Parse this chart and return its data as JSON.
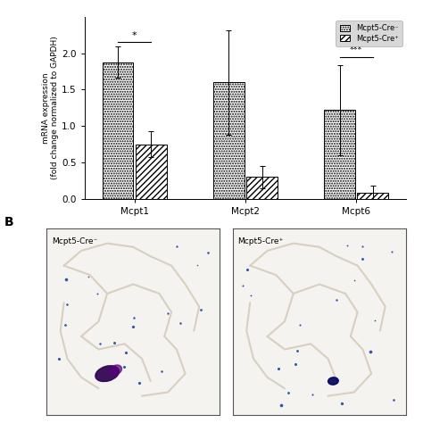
{
  "groups": [
    "Mcpt1",
    "Mcpt2",
    "Mcpt6"
  ],
  "dotted_values": [
    1.88,
    1.6,
    1.22
  ],
  "dotted_errors_upper": [
    0.22,
    0.72,
    0.62
  ],
  "dotted_errors_lower": [
    0.22,
    0.72,
    0.62
  ],
  "hatched_values": [
    0.75,
    0.3,
    0.08
  ],
  "hatched_errors_upper": [
    0.18,
    0.15,
    0.1
  ],
  "hatched_errors_lower": [
    0.18,
    0.15,
    0.08
  ],
  "ylabel": "mRNA expression\n(fold change normalized to GAPDH)",
  "ylim": [
    0,
    2.5
  ],
  "yticks": [
    0.0,
    0.5,
    1.0,
    1.5,
    2.0
  ],
  "bar_width": 0.28,
  "significance_mcpt1": "*",
  "significance_mcpt6": "***",
  "legend_dotted_label": "Mcpt5-Cre⁻",
  "legend_hatched_label": "Mcpt5-Cre⁺",
  "bg_color": "#ffffff",
  "left_img_label": "Mcpt5-Cre⁻",
  "right_img_label": "Mcpt5-Cre⁺"
}
